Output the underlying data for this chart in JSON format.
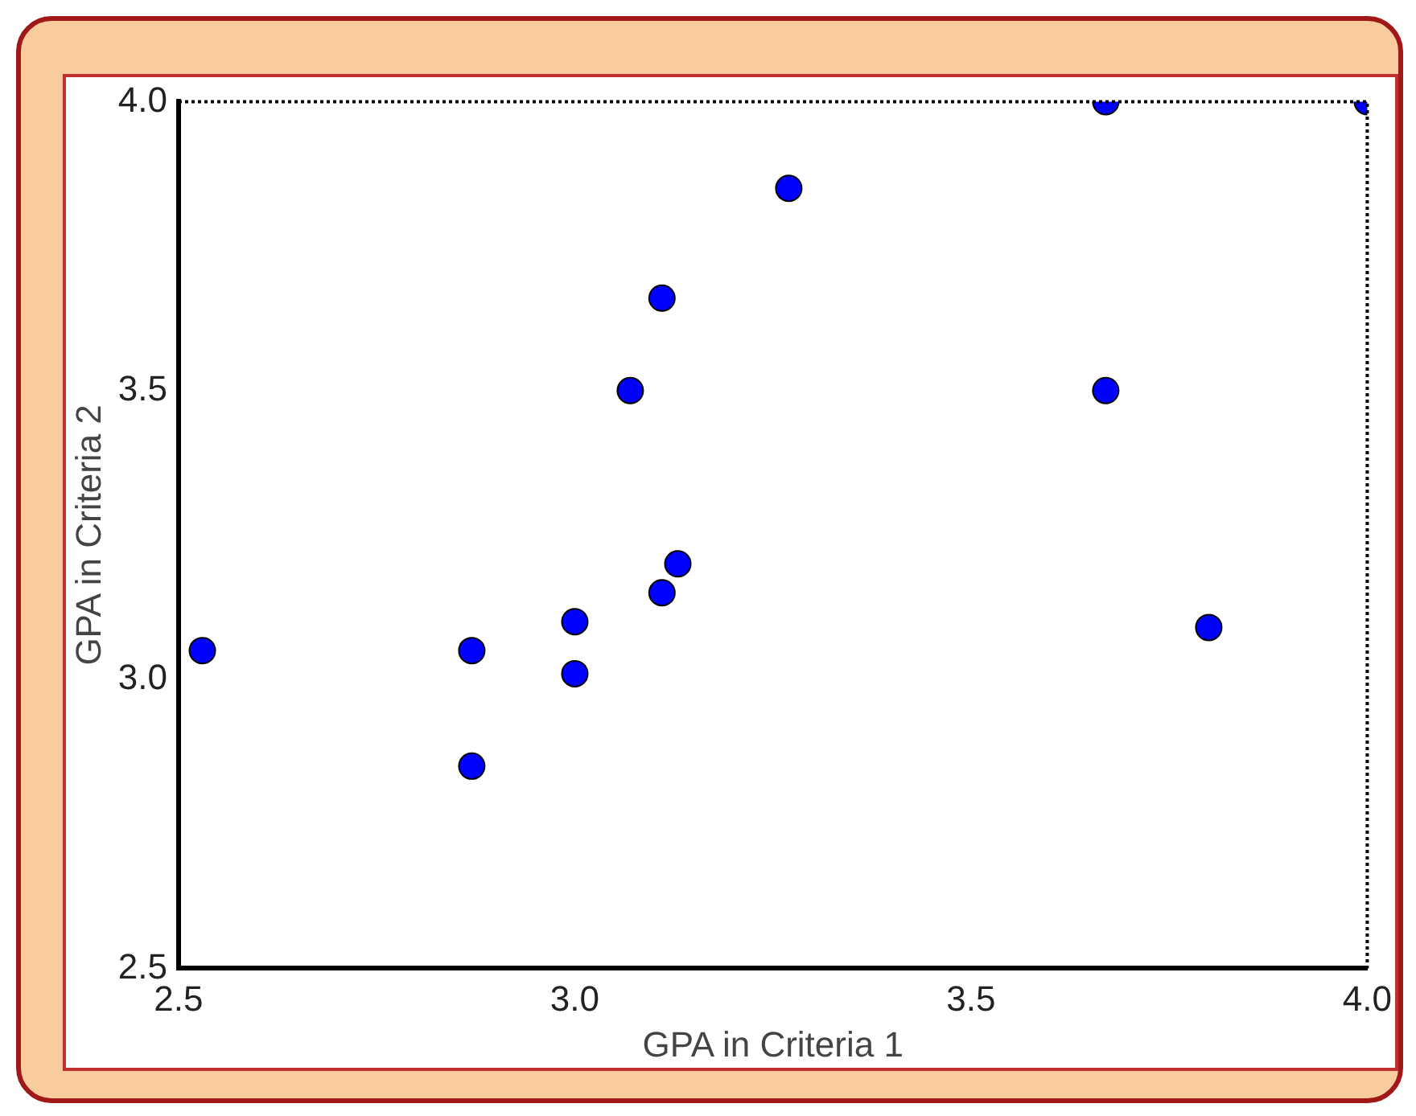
{
  "chart_data": {
    "type": "scatter",
    "xlabel": "GPA in Criteria 1",
    "ylabel": "GPA in Criteria 2",
    "series": [
      {
        "color": "#0000ff",
        "x": [
          2.53,
          2.87,
          2.87,
          3.0,
          3.0,
          3.11,
          3.13,
          3.07,
          3.11,
          3.27,
          3.67,
          3.67,
          3.8,
          4.0
        ],
        "values": [
          3.05,
          3.05,
          2.85,
          3.1,
          3.01,
          3.15,
          3.2,
          3.5,
          3.66,
          3.85,
          4.0,
          3.5,
          3.09,
          4.0
        ]
      }
    ],
    "xlim": [
      2.5,
      4.0
    ],
    "ylim": [
      2.5,
      4.0
    ],
    "xticks": [
      {
        "value": 2.5,
        "label": "2.5"
      },
      {
        "value": 3,
        "label": "3.0"
      },
      {
        "value": 3.5,
        "label": "3.5"
      },
      {
        "value": 4,
        "label": "4.0"
      }
    ],
    "yticks": [
      {
        "value": 2.5,
        "label": "2.5"
      },
      {
        "value": 3,
        "label": "3.0"
      },
      {
        "value": 3.5,
        "label": "3.5"
      },
      {
        "value": 4,
        "label": "4.0"
      }
    ],
    "grid": false,
    "legend": false,
    "marker": "circle"
  }
}
